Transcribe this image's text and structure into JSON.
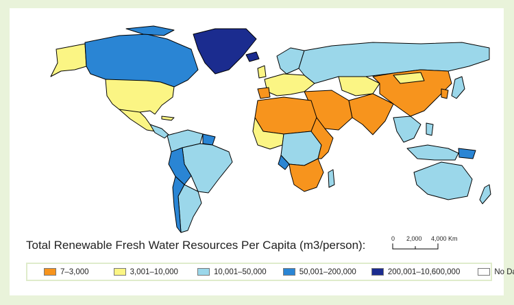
{
  "title": "Total Renewable Fresh Water Resources Per Capita (m3/person):",
  "legend": [
    {
      "label": "7–3,000",
      "color": "#f7941d"
    },
    {
      "label": "3,001–10,000",
      "color": "#fbf584"
    },
    {
      "label": "10,001–50,000",
      "color": "#9bd7ea"
    },
    {
      "label": "50,001–200,000",
      "color": "#2a85d4"
    },
    {
      "label": "200,001–10,600,000",
      "color": "#1b2c8f"
    },
    {
      "label": "No Data",
      "color": "#ffffff"
    }
  ],
  "scale_bar": {
    "ticks": [
      "0",
      "2,000",
      "4,000 Km"
    ]
  }
}
